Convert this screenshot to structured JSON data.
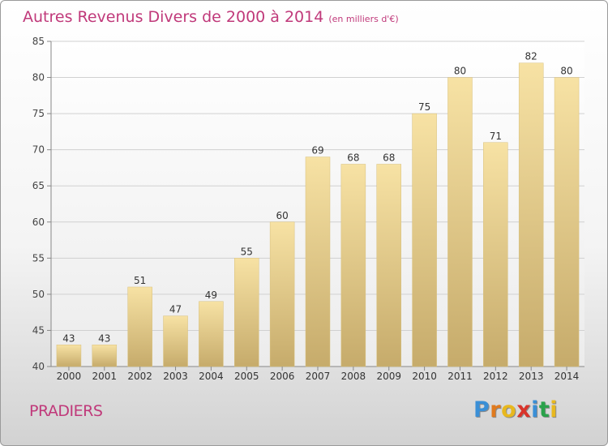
{
  "header": {
    "title": "Autres Revenus Divers de 2000 à 2014",
    "unit": "(en milliers d'€)"
  },
  "footer": {
    "place": "PRADIERS",
    "logo": [
      "P",
      "r",
      "o",
      "x",
      "i",
      "t",
      "i"
    ],
    "logo_colors": [
      "#3a8fd6",
      "#e07a1e",
      "#e8b81e",
      "#d9342b",
      "#3a8fd6",
      "#2aa24a",
      "#e8b81e"
    ]
  },
  "chart_data": {
    "type": "bar",
    "categories": [
      "2000",
      "2001",
      "2002",
      "2003",
      "2004",
      "2005",
      "2006",
      "2007",
      "2008",
      "2009",
      "2010",
      "2011",
      "2012",
      "2013",
      "2014"
    ],
    "values": [
      43,
      43,
      51,
      47,
      49,
      55,
      60,
      69,
      68,
      68,
      75,
      80,
      71,
      82,
      80
    ],
    "data_labels": [
      "43",
      "43",
      "51",
      "47",
      "49",
      "55",
      "60",
      "69",
      "68",
      "68",
      "75",
      "80",
      "71",
      "82",
      "80"
    ],
    "yticks": [
      "40",
      "45",
      "50",
      "55",
      "60",
      "65",
      "70",
      "75",
      "80",
      "85"
    ],
    "ylim": [
      40,
      85
    ],
    "grid": true,
    "bar_color": "#e4c983",
    "title": "Autres Revenus Divers de 2000 à 2014",
    "xlabel": "",
    "ylabel": ""
  }
}
